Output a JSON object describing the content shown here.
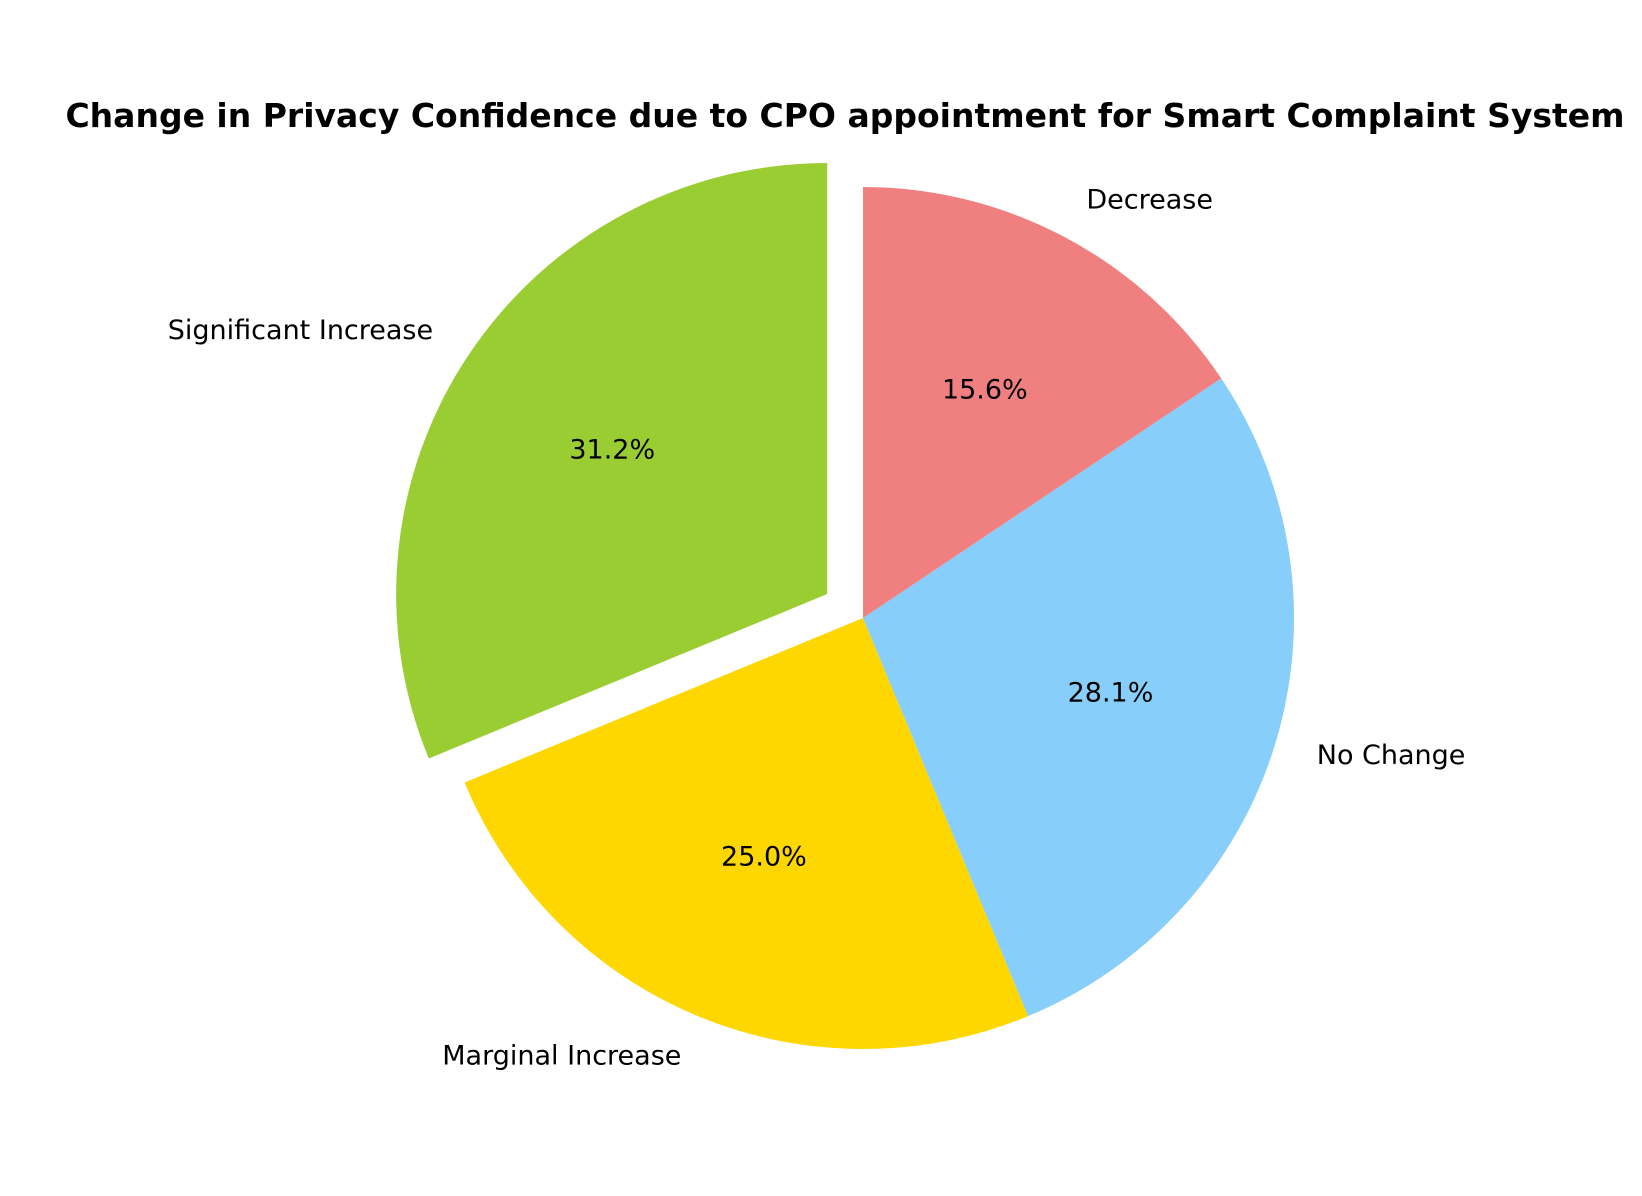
{
  "chart_data": {
    "type": "pie",
    "title": "Change in Privacy Confidence due to CPO appointment for Smart Complaint System",
    "start_angle_deg": 90,
    "direction": "counterclockwise",
    "slices": [
      {
        "label": "Significant Increase",
        "value": 31.2,
        "pct_label": "31.2%",
        "color": "#9ACD32",
        "exploded": true
      },
      {
        "label": "Marginal Increase",
        "value": 25.0,
        "pct_label": "25.0%",
        "color": "#FFD700",
        "exploded": false
      },
      {
        "label": "No Change",
        "value": 28.1,
        "pct_label": "28.1%",
        "color": "#87CEFA",
        "exploded": false
      },
      {
        "label": "Decrease",
        "value": 15.6,
        "pct_label": "15.6%",
        "color": "#F08080",
        "exploded": false
      }
    ]
  }
}
